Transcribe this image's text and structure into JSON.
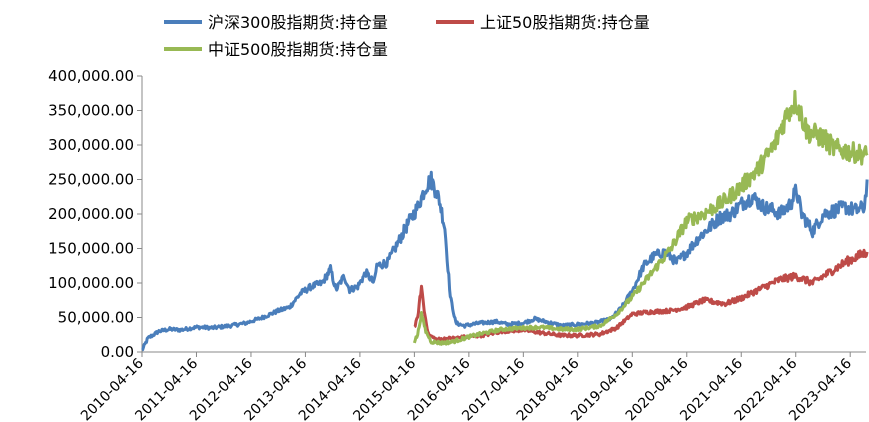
{
  "chart_data": {
    "type": "line",
    "title": "",
    "xlabel": "",
    "ylabel": "",
    "ylim": [
      0,
      400000
    ],
    "y_ticks": [
      "0.00",
      "50,000.00",
      "100,000.00",
      "150,000.00",
      "200,000.00",
      "250,000.00",
      "300,000.00",
      "350,000.00",
      "400,000.00"
    ],
    "x_ticks": [
      "2010-04-16",
      "2011-04-16",
      "2012-04-16",
      "2013-04-16",
      "2014-04-16",
      "2015-04-16",
      "2016-04-16",
      "2017-04-16",
      "2018-04-16",
      "2019-04-16",
      "2020-04-16",
      "2021-04-16",
      "2022-04-16",
      "2023-04-16"
    ],
    "grid": "horizontal",
    "legend_position": "top",
    "series": [
      {
        "name": "沪深300股指期货:持仓量",
        "color": "#4a7ebb",
        "points": [
          [
            2010.29,
            2000
          ],
          [
            2010.4,
            20000
          ],
          [
            2010.6,
            30000
          ],
          [
            2010.8,
            33000
          ],
          [
            2011.0,
            32000
          ],
          [
            2011.3,
            36000
          ],
          [
            2011.6,
            35000
          ],
          [
            2011.9,
            38000
          ],
          [
            2012.2,
            42000
          ],
          [
            2012.5,
            50000
          ],
          [
            2012.8,
            60000
          ],
          [
            2013.0,
            65000
          ],
          [
            2013.2,
            85000
          ],
          [
            2013.4,
            95000
          ],
          [
            2013.6,
            100000
          ],
          [
            2013.75,
            120000
          ],
          [
            2013.85,
            90000
          ],
          [
            2014.0,
            110000
          ],
          [
            2014.1,
            90000
          ],
          [
            2014.25,
            95000
          ],
          [
            2014.4,
            115000
          ],
          [
            2014.55,
            100000
          ],
          [
            2014.6,
            125000
          ],
          [
            2014.8,
            130000
          ],
          [
            2015.0,
            160000
          ],
          [
            2015.2,
            190000
          ],
          [
            2015.35,
            210000
          ],
          [
            2015.5,
            240000
          ],
          [
            2015.6,
            250000
          ],
          [
            2015.75,
            220000
          ],
          [
            2015.85,
            180000
          ],
          [
            2015.95,
            80000
          ],
          [
            2016.05,
            42000
          ],
          [
            2016.2,
            38000
          ],
          [
            2016.5,
            42000
          ],
          [
            2016.8,
            44000
          ],
          [
            2017.0,
            40000
          ],
          [
            2017.29,
            42000
          ],
          [
            2017.5,
            48000
          ],
          [
            2017.8,
            42000
          ],
          [
            2018.0,
            38000
          ],
          [
            2018.29,
            40000
          ],
          [
            2018.6,
            42000
          ],
          [
            2018.9,
            48000
          ],
          [
            2019.1,
            65000
          ],
          [
            2019.3,
            90000
          ],
          [
            2019.5,
            125000
          ],
          [
            2019.7,
            140000
          ],
          [
            2019.9,
            145000
          ],
          [
            2020.1,
            130000
          ],
          [
            2020.3,
            145000
          ],
          [
            2020.5,
            165000
          ],
          [
            2020.7,
            180000
          ],
          [
            2020.9,
            195000
          ],
          [
            2021.1,
            200000
          ],
          [
            2021.3,
            215000
          ],
          [
            2021.5,
            225000
          ],
          [
            2021.7,
            210000
          ],
          [
            2021.9,
            205000
          ],
          [
            2022.0,
            200000
          ],
          [
            2022.2,
            215000
          ],
          [
            2022.3,
            235000
          ],
          [
            2022.4,
            200000
          ],
          [
            2022.6,
            175000
          ],
          [
            2022.8,
            200000
          ],
          [
            2023.0,
            205000
          ],
          [
            2023.2,
            210000
          ],
          [
            2023.4,
            205000
          ],
          [
            2023.55,
            210000
          ],
          [
            2023.6,
            250000
          ]
        ]
      },
      {
        "name": "上证50股指期货:持仓量",
        "color": "#be4b48",
        "points": [
          [
            2015.29,
            35000
          ],
          [
            2015.35,
            50000
          ],
          [
            2015.42,
            95000
          ],
          [
            2015.47,
            60000
          ],
          [
            2015.55,
            25000
          ],
          [
            2015.7,
            18000
          ],
          [
            2016.0,
            20000
          ],
          [
            2016.29,
            22000
          ],
          [
            2016.6,
            25000
          ],
          [
            2016.9,
            30000
          ],
          [
            2017.29,
            32000
          ],
          [
            2017.6,
            28000
          ],
          [
            2018.0,
            24000
          ],
          [
            2018.29,
            24000
          ],
          [
            2018.7,
            26000
          ],
          [
            2019.0,
            35000
          ],
          [
            2019.29,
            55000
          ],
          [
            2019.6,
            58000
          ],
          [
            2020.0,
            60000
          ],
          [
            2020.29,
            65000
          ],
          [
            2020.6,
            75000
          ],
          [
            2021.0,
            70000
          ],
          [
            2021.29,
            78000
          ],
          [
            2021.6,
            90000
          ],
          [
            2022.0,
            105000
          ],
          [
            2022.29,
            110000
          ],
          [
            2022.6,
            100000
          ],
          [
            2022.9,
            115000
          ],
          [
            2023.2,
            130000
          ],
          [
            2023.6,
            145000
          ]
        ]
      },
      {
        "name": "中证500股指期货:持仓量",
        "color": "#98b954",
        "points": [
          [
            2015.29,
            15000
          ],
          [
            2015.35,
            25000
          ],
          [
            2015.42,
            55000
          ],
          [
            2015.5,
            30000
          ],
          [
            2015.6,
            15000
          ],
          [
            2015.8,
            13000
          ],
          [
            2016.0,
            15000
          ],
          [
            2016.29,
            22000
          ],
          [
            2016.6,
            28000
          ],
          [
            2016.9,
            33000
          ],
          [
            2017.29,
            35000
          ],
          [
            2017.6,
            36000
          ],
          [
            2018.0,
            33000
          ],
          [
            2018.29,
            33000
          ],
          [
            2018.7,
            38000
          ],
          [
            2019.0,
            55000
          ],
          [
            2019.29,
            80000
          ],
          [
            2019.6,
            110000
          ],
          [
            2020.0,
            150000
          ],
          [
            2020.29,
            190000
          ],
          [
            2020.6,
            200000
          ],
          [
            2021.0,
            220000
          ],
          [
            2021.29,
            240000
          ],
          [
            2021.6,
            265000
          ],
          [
            2021.9,
            300000
          ],
          [
            2022.1,
            340000
          ],
          [
            2022.29,
            365000
          ],
          [
            2022.5,
            320000
          ],
          [
            2022.8,
            310000
          ],
          [
            2023.0,
            295000
          ],
          [
            2023.29,
            290000
          ],
          [
            2023.6,
            285000
          ]
        ]
      }
    ]
  }
}
